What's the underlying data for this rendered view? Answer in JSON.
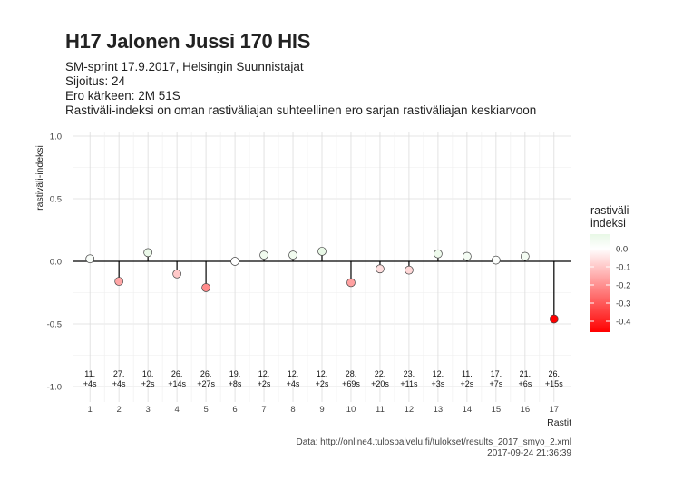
{
  "chart_data": {
    "type": "lollipop",
    "title": "H17 Jalonen Jussi 170 HlS",
    "subtitle_lines": [
      "SM-sprint 17.9.2017, Helsingin Suunnistajat",
      "Sijoitus: 24",
      "Ero kärkeen: 2M 51S",
      "Rastiväli-indeksi on oman rastiväliajan suhteellinen ero sarjan rastiväliajan keskiarvoon"
    ],
    "xlabel": "Rastit",
    "ylabel": "rastiväli-indeksi",
    "ylim": [
      -1.0,
      1.0
    ],
    "yticks": [
      -1.0,
      -0.5,
      0.0,
      0.5,
      1.0
    ],
    "ytick_labels": [
      "-1.0",
      "-0.5",
      "0.0",
      "0.5",
      "1.0"
    ],
    "x": [
      1,
      2,
      3,
      4,
      5,
      6,
      7,
      8,
      9,
      10,
      11,
      12,
      13,
      14,
      15,
      16,
      17
    ],
    "values": [
      0.02,
      -0.16,
      0.07,
      -0.1,
      -0.21,
      0.0,
      0.05,
      0.05,
      0.08,
      -0.17,
      -0.06,
      -0.07,
      0.06,
      0.04,
      0.01,
      0.04,
      -0.46
    ],
    "annotations": [
      [
        "11.",
        "+4s"
      ],
      [
        "27.",
        "+4s"
      ],
      [
        "10.",
        "+2s"
      ],
      [
        "26.",
        "+14s"
      ],
      [
        "26.",
        "+27s"
      ],
      [
        "19.",
        "+8s"
      ],
      [
        "12.",
        "+2s"
      ],
      [
        "12.",
        "+4s"
      ],
      [
        "12.",
        "+2s"
      ],
      [
        "28.",
        "+69s"
      ],
      [
        "22.",
        "+20s"
      ],
      [
        "23.",
        "+11s"
      ],
      [
        "12.",
        "+3s"
      ],
      [
        "11.",
        "+2s"
      ],
      [
        "17.",
        "+7s"
      ],
      [
        "21.",
        "+6s"
      ],
      [
        "26.",
        "+15s"
      ]
    ],
    "legend": {
      "title_lines": [
        "rastiväli-",
        "indeksi"
      ],
      "ticks": [
        0.0,
        -0.1,
        -0.2,
        -0.3,
        -0.4
      ],
      "tick_labels": [
        "0.0",
        "-0.1",
        "-0.2",
        "-0.3",
        "-0.4"
      ],
      "range": [
        -0.46,
        0.08
      ],
      "placement": "right"
    },
    "colors": {
      "high": "#e8f8e6",
      "mid": "#ffffff",
      "low": "#ff0000"
    },
    "grid": true,
    "caption_lines": [
      "Data: http://online4.tulospalvelu.fi/tulokset/results_2017_smyo_2.xml",
      "2017-09-24 21:36:39"
    ]
  }
}
